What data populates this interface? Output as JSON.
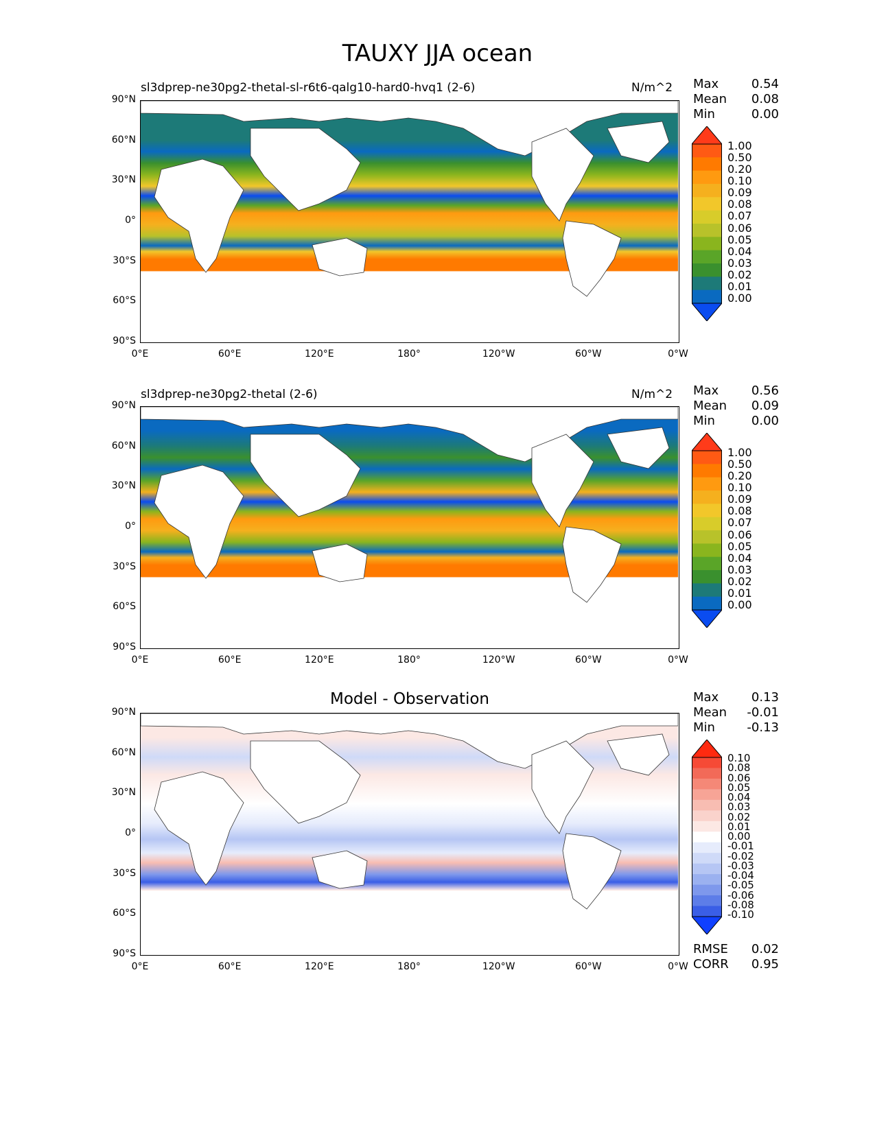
{
  "title": "TAUXY JJA ocean",
  "yticks": [
    "90°N",
    "60°N",
    "30°N",
    "0°",
    "30°S",
    "60°S",
    "90°S"
  ],
  "xticks": [
    "0°E",
    "60°E",
    "120°E",
    "180°",
    "120°W",
    "60°W",
    "0°W"
  ],
  "panels": [
    {
      "title_left": "sl3dprep-ne30pg2-thetal-sl-r6t6-qalg10-hard0-hvq1 (2-6)",
      "title_right": "N/m^2",
      "title_center": "",
      "stats": [
        {
          "label": "Max",
          "value": "0.54"
        },
        {
          "label": "Mean",
          "value": "0.08"
        },
        {
          "label": "Min",
          "value": "0.00"
        }
      ],
      "colorbar": {
        "labels": [
          "1.00",
          "0.50",
          "0.20",
          "0.10",
          "0.09",
          "0.08",
          "0.07",
          "0.06",
          "0.05",
          "0.04",
          "0.03",
          "0.02",
          "0.01",
          "0.00"
        ],
        "colors": [
          "#ff3b1a",
          "#ff5a14",
          "#ff7a00",
          "#ff9a10",
          "#f5b01e",
          "#f2c72a",
          "#d8cc2a",
          "#b8c22a",
          "#8ab51e",
          "#5aa528",
          "#3a902e",
          "#1d7a78",
          "#0a6ac0",
          "#0a4cf0"
        ]
      },
      "metrics": []
    },
    {
      "title_left": "sl3dprep-ne30pg2-thetal (2-6)",
      "title_right": "N/m^2",
      "title_center": "",
      "stats": [
        {
          "label": "Max",
          "value": "0.56"
        },
        {
          "label": "Mean",
          "value": "0.09"
        },
        {
          "label": "Min",
          "value": "0.00"
        }
      ],
      "colorbar": {
        "labels": [
          "1.00",
          "0.50",
          "0.20",
          "0.10",
          "0.09",
          "0.08",
          "0.07",
          "0.06",
          "0.05",
          "0.04",
          "0.03",
          "0.02",
          "0.01",
          "0.00"
        ],
        "colors": [
          "#ff3b1a",
          "#ff5a14",
          "#ff7a00",
          "#ff9a10",
          "#f5b01e",
          "#f2c72a",
          "#d8cc2a",
          "#b8c22a",
          "#8ab51e",
          "#5aa528",
          "#3a902e",
          "#1d7a78",
          "#0a6ac0",
          "#0a4cf0"
        ]
      },
      "metrics": []
    },
    {
      "title_left": "",
      "title_right": "",
      "title_center": "Model - Observation",
      "stats": [
        {
          "label": "Max",
          "value": "0.13"
        },
        {
          "label": "Mean",
          "value": "-0.01"
        },
        {
          "label": "Min",
          "value": "-0.13"
        }
      ],
      "colorbar": {
        "labels": [
          "0.10",
          "0.08",
          "0.06",
          "0.05",
          "0.04",
          "0.03",
          "0.02",
          "0.01",
          "0.00",
          "-0.01",
          "-0.02",
          "-0.03",
          "-0.04",
          "-0.05",
          "-0.06",
          "-0.08",
          "-0.10"
        ],
        "colors": [
          "#ff2a10",
          "#f64a36",
          "#f26a58",
          "#f58877",
          "#f7a496",
          "#f8bdb2",
          "#fad3cc",
          "#fce8e4",
          "#ffffff",
          "#e6ecfc",
          "#cfdaf8",
          "#b6c6f4",
          "#9bb1f0",
          "#7e98ec",
          "#5d7de8",
          "#3a5ee6",
          "#1040ff"
        ]
      },
      "metrics": [
        {
          "label": "RMSE",
          "value": "0.02"
        },
        {
          "label": "CORR",
          "value": "0.95"
        }
      ]
    }
  ]
}
